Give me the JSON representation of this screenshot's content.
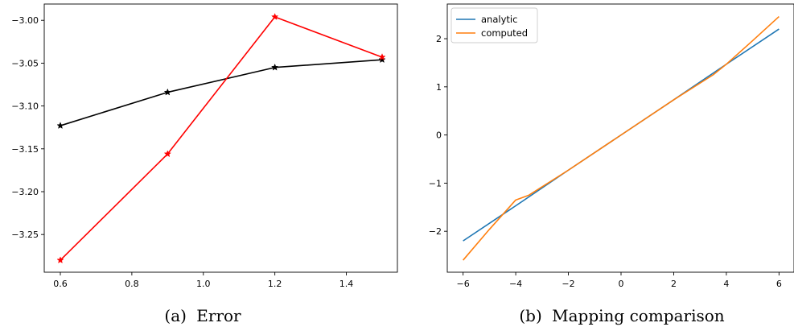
{
  "chart_data": [
    {
      "type": "line",
      "caption_tag": "(a)",
      "caption_text": "Error",
      "xlim": [
        0.555,
        1.545
      ],
      "ylim": [
        -3.294,
        -2.981
      ],
      "xticks": [
        0.6,
        0.8,
        1.0,
        1.2,
        1.4
      ],
      "xtick_labels": [
        "0.6",
        "0.8",
        "1.0",
        "1.2",
        "1.4"
      ],
      "yticks": [
        -3.25,
        -3.2,
        -3.15,
        -3.1,
        -3.05,
        -3.0
      ],
      "ytick_labels": [
        "−3.25",
        "−3.20",
        "−3.15",
        "−3.10",
        "−3.05",
        "−3.00"
      ],
      "series": [
        {
          "color": "#000000",
          "marker": "star",
          "x": [
            0.6,
            0.9,
            1.2,
            1.5
          ],
          "y": [
            -3.123,
            -3.084,
            -3.055,
            -3.046
          ]
        },
        {
          "color": "#ff0000",
          "marker": "star",
          "x": [
            0.6,
            0.9,
            1.2,
            1.5
          ],
          "y": [
            -3.28,
            -3.156,
            -2.996,
            -3.043
          ]
        }
      ]
    },
    {
      "type": "line",
      "caption_tag": "(b)",
      "caption_text": "Mapping comparison",
      "xlim": [
        -6.6,
        6.6
      ],
      "ylim": [
        -2.85,
        2.72
      ],
      "xticks": [
        -6,
        -4,
        -2,
        0,
        2,
        4,
        6
      ],
      "xtick_labels": [
        "−6",
        "−4",
        "−2",
        "0",
        "2",
        "4",
        "6"
      ],
      "yticks": [
        -2,
        -1,
        0,
        1,
        2
      ],
      "ytick_labels": [
        "−2",
        "−1",
        "0",
        "1",
        "2"
      ],
      "legend": {
        "placement": "top-left",
        "entries": [
          "analytic",
          "computed"
        ]
      },
      "series": [
        {
          "name": "analytic",
          "color": "#1f77b4",
          "x": [
            -6,
            -4,
            -2,
            0,
            2,
            4,
            6
          ],
          "y": [
            -2.2,
            -1.47,
            -0.73,
            0.0,
            0.73,
            1.47,
            2.2
          ]
        },
        {
          "name": "computed",
          "color": "#ff7f0e",
          "x": [
            -6,
            -5,
            -4,
            -3.5,
            -2,
            0,
            2,
            3.5,
            4,
            5,
            6
          ],
          "y": [
            -2.6,
            -1.96,
            -1.35,
            -1.25,
            -0.73,
            0.0,
            0.73,
            1.25,
            1.47,
            1.96,
            2.46
          ]
        }
      ]
    }
  ]
}
